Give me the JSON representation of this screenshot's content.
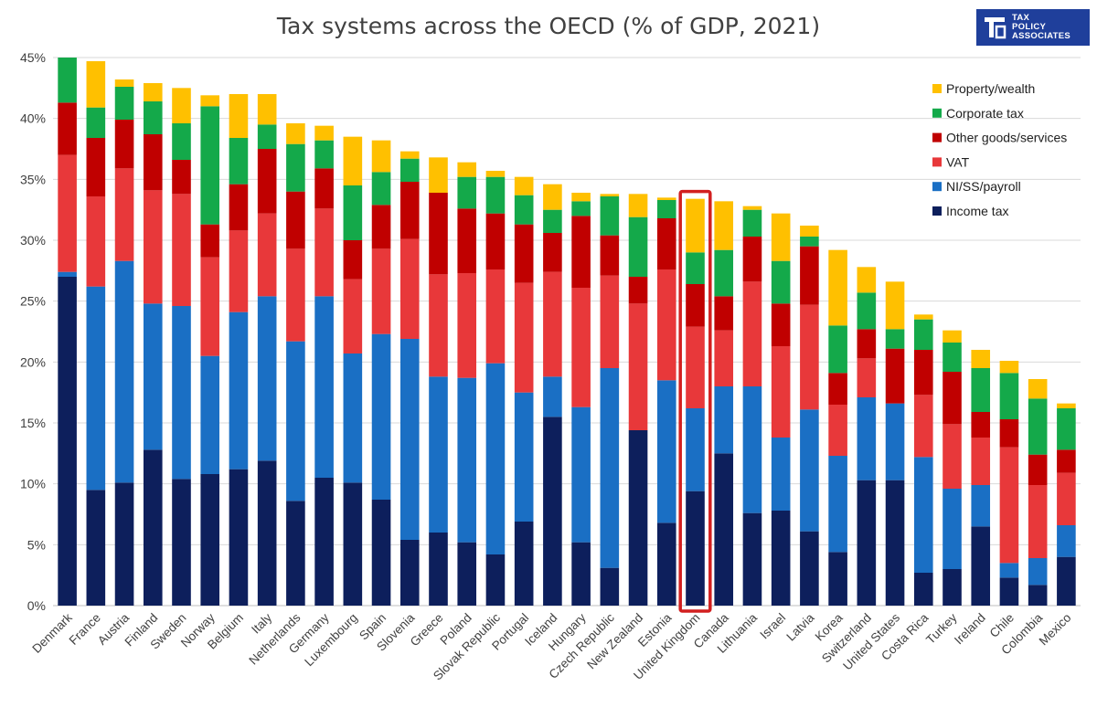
{
  "title": "Tax systems across the OECD (% of GDP, 2021)",
  "logo": {
    "line1": "TAX",
    "line2": "POLICY",
    "line3": "ASSOCIATES",
    "color": "#1f3f9b"
  },
  "highlight": {
    "category": "United Kingdom",
    "color": "#d21f1f"
  },
  "chart_data": {
    "type": "bar",
    "stacked": true,
    "title": "Tax systems across the OECD (% of GDP, 2021)",
    "xlabel": "",
    "ylabel": "",
    "ylim": [
      0,
      45
    ],
    "yticks": [
      0,
      5,
      10,
      15,
      20,
      25,
      30,
      35,
      40,
      45
    ],
    "ytick_labels": [
      "0%",
      "5%",
      "10%",
      "15%",
      "20%",
      "25%",
      "30%",
      "35%",
      "40%",
      "45%"
    ],
    "grid": true,
    "legend_position": "top-right",
    "categories": [
      "Denmark",
      "France",
      "Austria",
      "Finland",
      "Sweden",
      "Norway",
      "Belgium",
      "Italy",
      "Netherlands",
      "Germany",
      "Luxembourg",
      "Spain",
      "Slovenia",
      "Greece",
      "Poland",
      "Slovak Republic",
      "Portugal",
      "Iceland",
      "Hungary",
      "Czech Republic",
      "New Zealand",
      "Estonia",
      "United Kingdom",
      "Canada",
      "Lithuania",
      "Israel",
      "Latvia",
      "Korea",
      "Switzerland",
      "United States",
      "Costa Rica",
      "Turkey",
      "Ireland",
      "Chile",
      "Colombia",
      "Mexico"
    ],
    "series": [
      {
        "name": "Income tax",
        "color": "#0d1f5c",
        "values": [
          27.0,
          9.5,
          10.1,
          12.8,
          10.4,
          10.8,
          11.2,
          11.9,
          8.6,
          10.5,
          10.1,
          8.7,
          5.4,
          6.0,
          5.2,
          4.2,
          6.9,
          15.5,
          5.2,
          3.1,
          14.4,
          6.8,
          9.4,
          12.5,
          7.6,
          7.8,
          6.1,
          4.4,
          10.3,
          10.3,
          2.7,
          3.0,
          6.5,
          2.3,
          1.7,
          4.0
        ]
      },
      {
        "name": "NI/SS/payroll",
        "color": "#1a6fc4",
        "values": [
          0.4,
          16.7,
          18.2,
          12.0,
          14.2,
          9.7,
          12.9,
          13.5,
          13.1,
          14.9,
          10.6,
          13.6,
          16.5,
          12.8,
          13.5,
          15.7,
          10.6,
          3.3,
          11.1,
          16.4,
          0.0,
          11.7,
          6.8,
          5.5,
          10.4,
          6.0,
          10.0,
          7.9,
          6.8,
          6.3,
          9.5,
          6.6,
          3.4,
          1.2,
          2.2,
          2.6
        ]
      },
      {
        "name": "VAT",
        "color": "#e8383a",
        "values": [
          9.6,
          7.4,
          7.6,
          9.3,
          9.2,
          8.1,
          6.7,
          6.8,
          7.6,
          7.2,
          6.1,
          7.0,
          8.2,
          8.4,
          8.6,
          7.7,
          9.0,
          8.6,
          9.8,
          7.6,
          10.4,
          9.1,
          6.7,
          4.6,
          8.6,
          7.5,
          8.6,
          4.2,
          3.2,
          0.0,
          5.1,
          5.3,
          3.9,
          9.5,
          6.0,
          4.3
        ]
      },
      {
        "name": "Other goods/services",
        "color": "#c00000",
        "values": [
          4.3,
          4.8,
          4.0,
          4.6,
          2.8,
          2.7,
          3.8,
          5.3,
          4.7,
          3.3,
          3.2,
          3.6,
          4.7,
          6.7,
          5.3,
          4.6,
          4.8,
          3.2,
          5.9,
          3.3,
          2.2,
          4.2,
          3.5,
          2.8,
          3.7,
          3.5,
          4.8,
          2.6,
          2.4,
          4.5,
          3.7,
          4.3,
          2.1,
          2.3,
          2.5,
          1.9
        ]
      },
      {
        "name": "Corporate tax",
        "color": "#14a94a",
        "values": [
          3.7,
          2.5,
          2.7,
          2.7,
          3.0,
          9.7,
          3.8,
          2.0,
          3.9,
          2.3,
          4.5,
          2.7,
          1.9,
          0.0,
          2.6,
          3.0,
          2.4,
          1.9,
          1.2,
          3.2,
          4.9,
          1.5,
          2.6,
          3.8,
          2.2,
          3.5,
          0.8,
          3.9,
          3.0,
          1.6,
          2.5,
          2.4,
          3.6,
          3.8,
          4.6,
          3.4
        ]
      },
      {
        "name": "Property/wealth",
        "color": "#ffc000",
        "values": [
          0.0,
          3.8,
          0.6,
          1.5,
          2.9,
          0.9,
          3.6,
          2.5,
          1.7,
          1.2,
          4.0,
          2.6,
          0.6,
          2.9,
          1.2,
          0.5,
          1.5,
          2.1,
          0.7,
          0.2,
          1.9,
          0.2,
          4.4,
          4.0,
          0.3,
          3.9,
          0.9,
          6.2,
          2.1,
          3.9,
          0.4,
          1.0,
          1.5,
          1.0,
          1.6,
          0.4
        ]
      }
    ]
  }
}
